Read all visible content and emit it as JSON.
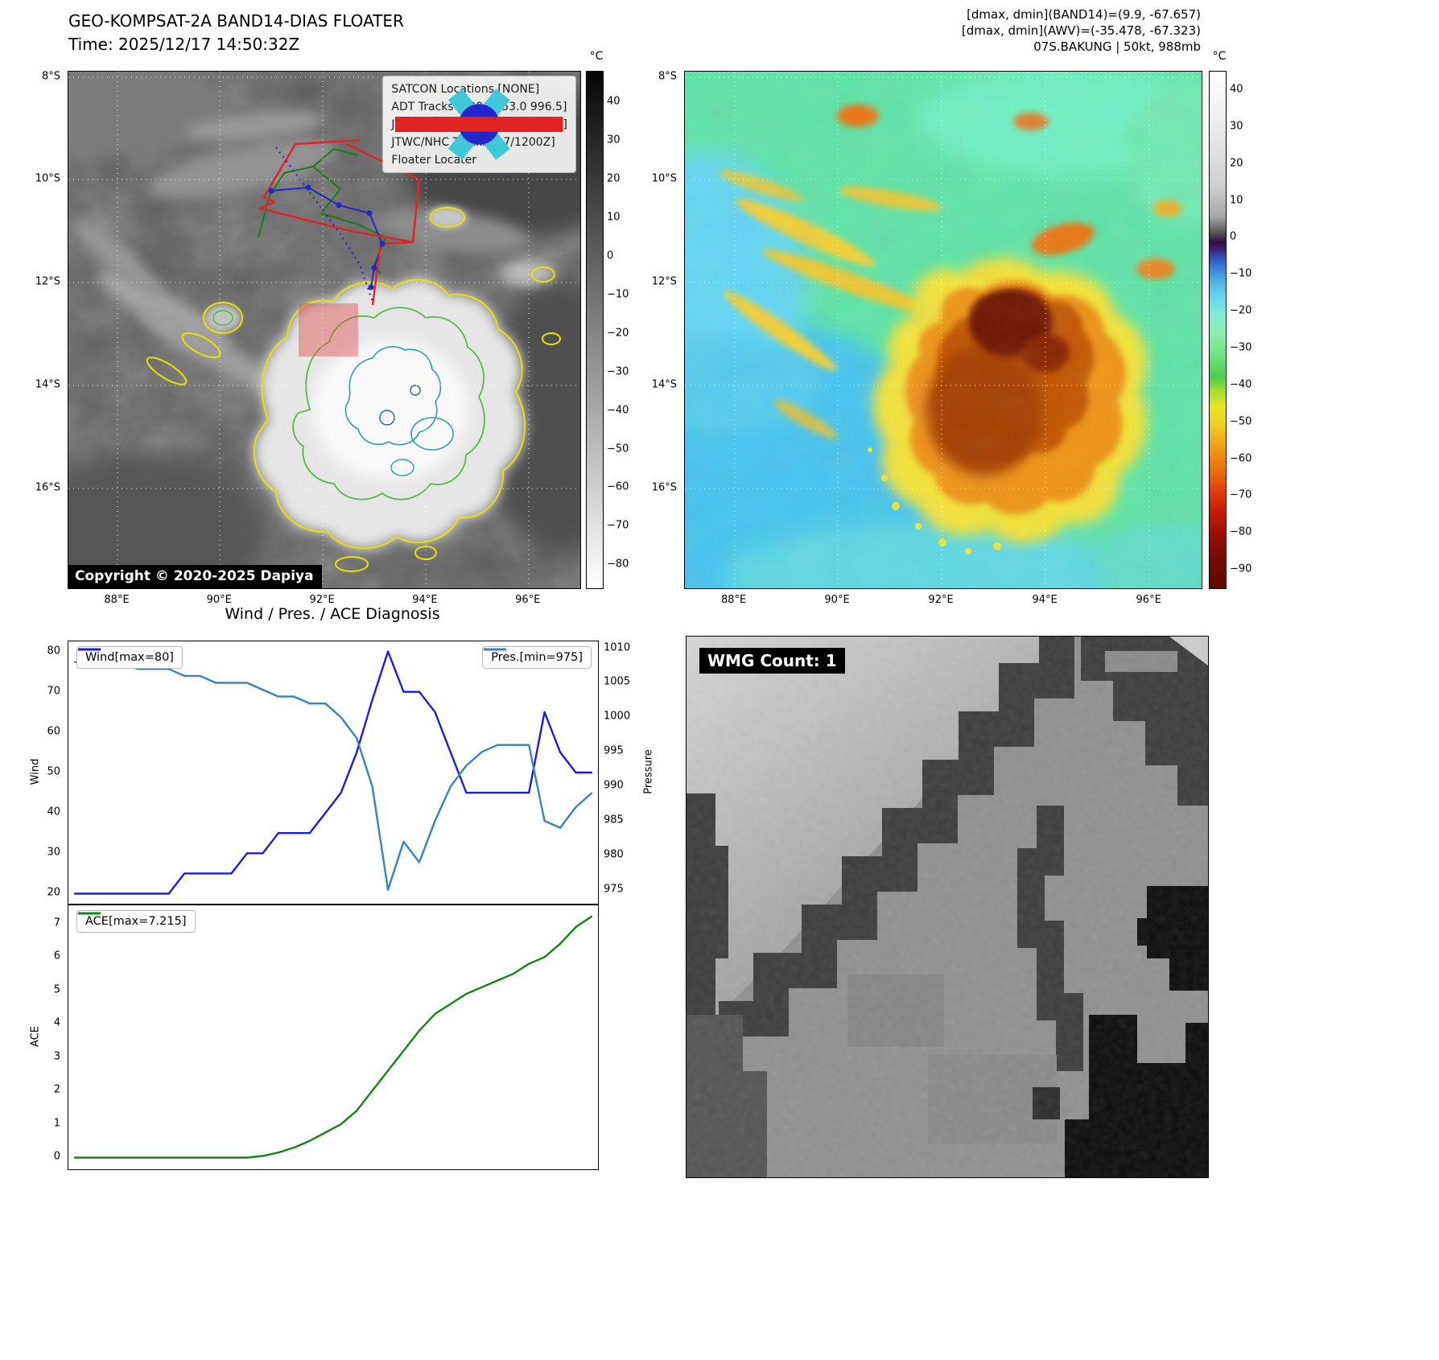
{
  "band14": {
    "title": "GEO-KOMPSAT-2A BAND14-DIAS FLOATER",
    "subtitle": "Time: 2025/12/17 14:50:32Z",
    "copyright": "Copyright © 2020-2025 Dapiya",
    "colorbar_unit": "°C",
    "colorbar_ticks": [
      40,
      30,
      20,
      10,
      0,
      -10,
      -20,
      -30,
      -40,
      -50,
      -60,
      -70,
      -80
    ],
    "x_ticks": [
      "88°E",
      "90°E",
      "92°E",
      "94°E",
      "96°E"
    ],
    "y_ticks": [
      "8°S",
      "10°S",
      "12°S",
      "14°S",
      "16°S"
    ],
    "legend": [
      {
        "label": "SATCON Locations [NONE]",
        "marker": "x",
        "color": "#3fc8d8"
      },
      {
        "label": "ADT Tracks [1200Z 53.0 996.5]",
        "marker": "line",
        "color": "#1d7a1d"
      },
      {
        "label": "JTWC/NHC Forecast [17/0600Z]",
        "marker": "dotted",
        "color": "#2525cc"
      },
      {
        "label": "JTWC/NHC Tracks [17/1200Z]",
        "marker": "line-dot",
        "color": "#2525cc"
      },
      {
        "label": "Floater Locater",
        "marker": "line",
        "color": "#e32222"
      }
    ]
  },
  "awv": {
    "header_lines": [
      "[dmax, dmin](BAND14)=(9.9, -67.657)",
      "[dmax, dmin](AWV)=(-35.478, -67.323)",
      "07S.BAKUNG | 50kt, 988mb"
    ],
    "colorbar_unit": "°C",
    "colorbar_ticks": [
      40,
      30,
      20,
      10,
      0,
      -10,
      -20,
      -30,
      -40,
      -50,
      -60,
      -70,
      -80,
      -90
    ],
    "x_ticks": [
      "88°E",
      "90°E",
      "92°E",
      "94°E",
      "96°E"
    ],
    "y_ticks": [
      "8°S",
      "10°S",
      "12°S",
      "14°S",
      "16°S"
    ]
  },
  "diagnosis": {
    "title": "Wind / Pres. / ACE Diagnosis"
  },
  "wmg": {
    "label": "WMG Count: 1"
  },
  "chart_data": [
    {
      "type": "line",
      "title": "Wind / Pres. / ACE Diagnosis",
      "xlabel": "",
      "grid": false,
      "series": [
        {
          "name": "Wind[max=80]",
          "axis": "left",
          "color": "#1c1ce0",
          "values": [
            20,
            20,
            20,
            20,
            20,
            20,
            20,
            25,
            25,
            25,
            25,
            30,
            30,
            35,
            35,
            35,
            40,
            45,
            55,
            68,
            80,
            70,
            70,
            65,
            55,
            45,
            45,
            45,
            45,
            45,
            65,
            55,
            50,
            50
          ]
        },
        {
          "name": "Pres.[min=975]",
          "axis": "right",
          "color": "#3585bb",
          "values": [
            1008,
            1008,
            1008,
            1008,
            1007,
            1007,
            1007,
            1006,
            1006,
            1005,
            1005,
            1005,
            1004,
            1003,
            1003,
            1002,
            1002,
            1000,
            997,
            990,
            975,
            982,
            979,
            985,
            990,
            993,
            995,
            996,
            996,
            996,
            985,
            984,
            987,
            989
          ]
        }
      ],
      "left_axis": {
        "label": "Wind",
        "ticks": [
          20,
          30,
          40,
          50,
          60,
          70,
          80
        ],
        "range": [
          17.5,
          82.5
        ]
      },
      "right_axis": {
        "label": "Pressure",
        "ticks": [
          975,
          980,
          985,
          990,
          995,
          1000,
          1005,
          1010
        ],
        "range": [
          973,
          1011
        ]
      }
    },
    {
      "type": "line",
      "title": "",
      "grid": false,
      "series": [
        {
          "name": "ACE[max=7.215]",
          "axis": "left",
          "color": "#148514",
          "values": [
            0,
            0,
            0,
            0,
            0,
            0,
            0,
            0,
            0,
            0,
            0,
            0,
            0.05,
            0.15,
            0.3,
            0.5,
            0.75,
            1.0,
            1.4,
            2.0,
            2.6,
            3.2,
            3.8,
            4.3,
            4.6,
            4.9,
            5.1,
            5.3,
            5.5,
            5.8,
            6.0,
            6.4,
            6.9,
            7.215
          ]
        }
      ],
      "left_axis": {
        "label": "ACE",
        "ticks": [
          0,
          1,
          2,
          3,
          4,
          5,
          6,
          7
        ],
        "range": [
          -0.35,
          7.55
        ]
      }
    }
  ]
}
